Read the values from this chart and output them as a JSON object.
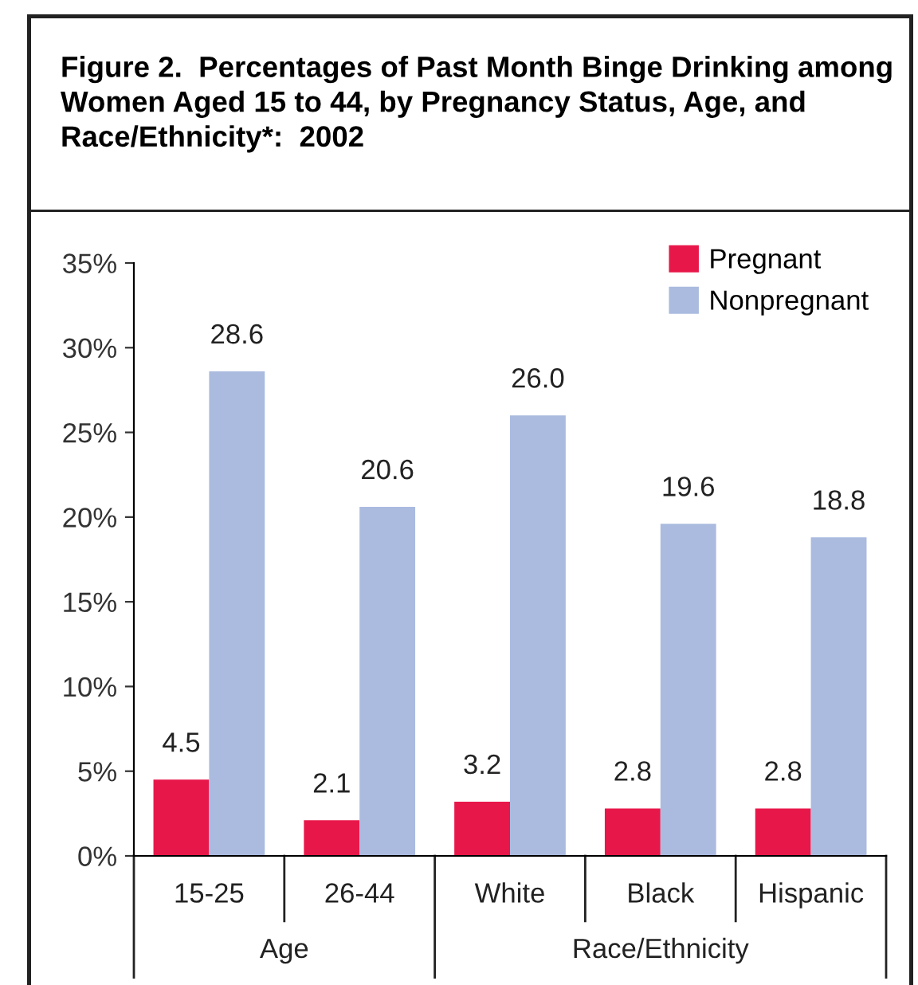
{
  "chart_data": {
    "type": "bar",
    "title": "Figure 2.  Percentages of Past Month Binge Drinking among Women Aged 15 to 44, by Pregnancy Status, Age, and Race/Ethnicity*:  2002",
    "categories": [
      "15-25",
      "26-44",
      "White",
      "Black",
      "Hispanic"
    ],
    "series": [
      {
        "name": "Pregnant",
        "color": "#e8174a",
        "values": [
          4.5,
          2.1,
          3.2,
          2.8,
          2.8
        ],
        "value_labels": [
          "4.5",
          "2.1",
          "3.2",
          "2.8",
          "2.8"
        ]
      },
      {
        "name": "Nonpregnant",
        "color": "#aabbdf",
        "values": [
          28.6,
          20.6,
          26.0,
          19.6,
          18.8
        ],
        "value_labels": [
          "28.6",
          "20.6",
          "26.0",
          "19.6",
          "18.8"
        ]
      }
    ],
    "ylim": [
      0,
      35
    ],
    "yticks": [
      {
        "value": 0,
        "label": "0%"
      },
      {
        "value": 5,
        "label": "5%"
      },
      {
        "value": 10,
        "label": "10%"
      },
      {
        "value": 15,
        "label": "15%"
      },
      {
        "value": 20,
        "label": "20%"
      },
      {
        "value": 25,
        "label": "25%"
      },
      {
        "value": 30,
        "label": "30%"
      },
      {
        "value": 35,
        "label": "35%"
      }
    ],
    "annotations": [
      "Age",
      "Race/Ethnicity"
    ],
    "legend": "top right",
    "grid": false
  }
}
